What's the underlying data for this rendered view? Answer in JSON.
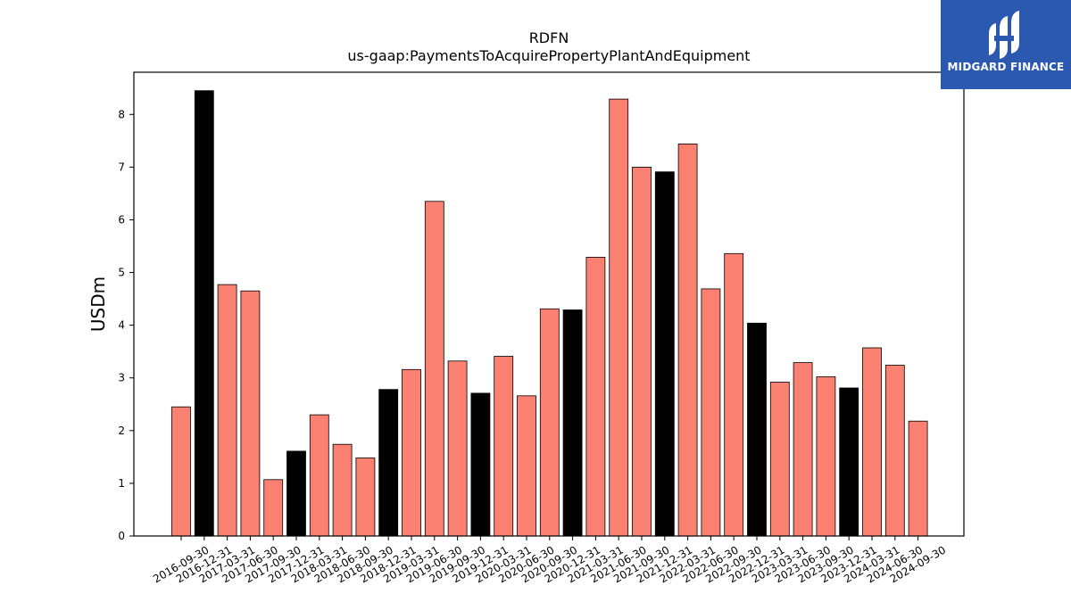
{
  "chart_data": {
    "type": "bar",
    "title": "RDFN",
    "subtitle": "us-gaap:PaymentsToAcquirePropertyPlantAndEquipment",
    "ylabel": "USDm",
    "xlabel": "",
    "ylim": [
      0,
      8.8
    ],
    "yticks": [
      0,
      1,
      2,
      3,
      4,
      5,
      6,
      7,
      8
    ],
    "grid": false,
    "colors": {
      "quarter": "#fa8072",
      "year_end": "#000000",
      "edge": "#000000"
    },
    "categories": [
      "2016-09-30",
      "2016-12-31",
      "2017-03-31",
      "2017-06-30",
      "2017-09-30",
      "2017-12-31",
      "2018-03-31",
      "2018-06-30",
      "2018-09-30",
      "2018-12-31",
      "2019-03-31",
      "2019-06-30",
      "2019-09-30",
      "2019-12-31",
      "2020-03-31",
      "2020-06-30",
      "2020-09-30",
      "2020-12-31",
      "2021-03-31",
      "2021-06-30",
      "2021-09-30",
      "2021-12-31",
      "2022-03-31",
      "2022-06-30",
      "2022-09-30",
      "2022-12-31",
      "2023-03-31",
      "2023-06-30",
      "2023-09-30",
      "2023-12-31",
      "2024-03-31",
      "2024-06-30",
      "2024-09-30"
    ],
    "values": [
      2.45,
      8.45,
      4.77,
      4.65,
      1.07,
      1.61,
      2.3,
      1.74,
      1.48,
      2.78,
      3.16,
      6.35,
      3.32,
      2.71,
      3.41,
      2.66,
      4.31,
      4.29,
      5.29,
      8.29,
      7.0,
      6.91,
      7.44,
      4.69,
      5.36,
      4.04,
      2.92,
      3.29,
      3.02,
      2.81,
      3.57,
      3.24,
      2.18
    ],
    "year_end": [
      false,
      true,
      false,
      false,
      false,
      true,
      false,
      false,
      false,
      true,
      false,
      false,
      false,
      true,
      false,
      false,
      false,
      true,
      false,
      false,
      false,
      true,
      false,
      false,
      false,
      true,
      false,
      false,
      false,
      true,
      false,
      false,
      false
    ]
  },
  "logo": {
    "text": "MIDGARD FINANCE",
    "bg_color": "#2b59b0",
    "icon": "midgard-logo-icon"
  }
}
